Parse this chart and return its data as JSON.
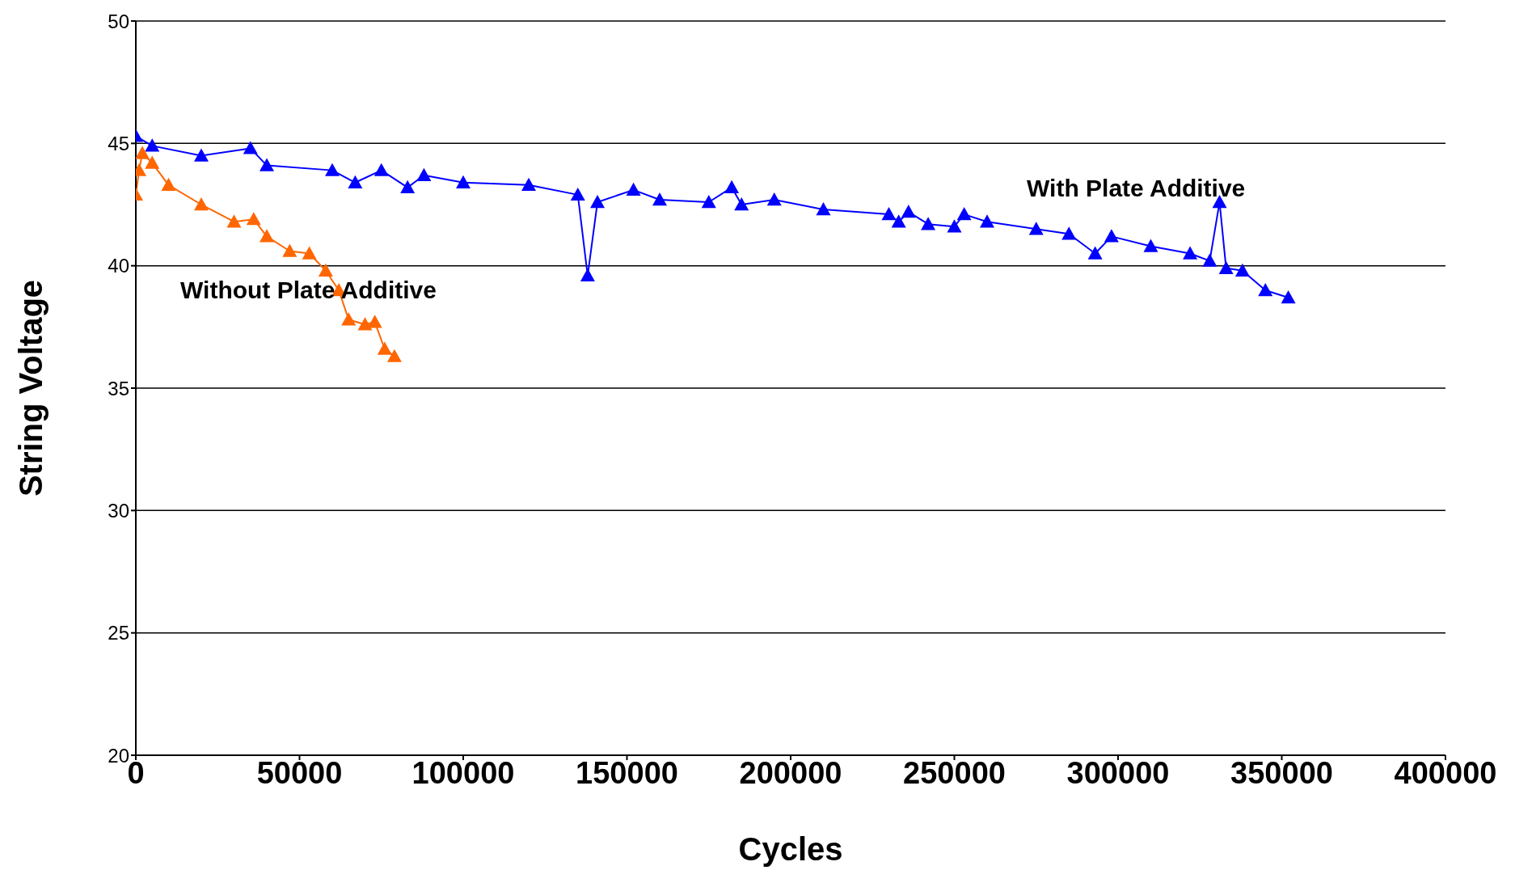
{
  "chart_data": {
    "type": "line",
    "xlabel": "Cycles",
    "ylabel": "String Voltage",
    "xlim": [
      0,
      400000
    ],
    "xticks": [
      0,
      50000,
      100000,
      150000,
      200000,
      250000,
      300000,
      350000,
      400000
    ],
    "ylim": [
      20,
      50
    ],
    "yticks": [
      20,
      25,
      30,
      35,
      40,
      45,
      50
    ],
    "grid": "y",
    "marker": "triangle",
    "line_style": "solid",
    "series": [
      {
        "color": "#0000ff",
        "x": [
          0,
          5000,
          20000,
          35000,
          40000,
          60000,
          67000,
          75000,
          83000,
          88000,
          100000,
          120000,
          135000,
          138000,
          141000,
          152000,
          160000,
          175000,
          182000,
          185000,
          195000,
          210000,
          230000,
          233000,
          236000,
          242000,
          250000,
          253000,
          260000,
          275000,
          285000,
          293000,
          298000,
          310000,
          322000,
          328000,
          331000,
          333000,
          338000,
          345000,
          352000
        ],
        "values": [
          45.3,
          44.9,
          44.5,
          44.8,
          44.1,
          43.9,
          43.4,
          43.9,
          43.2,
          43.7,
          43.4,
          43.3,
          42.9,
          39.6,
          42.6,
          43.1,
          42.7,
          42.6,
          43.2,
          42.5,
          42.7,
          42.3,
          42.1,
          41.8,
          42.2,
          41.7,
          41.6,
          42.1,
          41.8,
          41.5,
          41.3,
          40.5,
          41.2,
          40.8,
          40.5,
          40.2,
          42.6,
          39.9,
          39.8,
          39.0,
          38.7
        ]
      },
      {
        "color": "#ff6600",
        "x": [
          0,
          1000,
          2000,
          5000,
          10000,
          20000,
          30000,
          36000,
          40000,
          47000,
          53000,
          58000,
          62000,
          65000,
          70000,
          73000,
          76000,
          79000
        ],
        "values": [
          42.9,
          43.9,
          44.6,
          44.2,
          43.3,
          42.5,
          41.8,
          41.9,
          41.2,
          40.6,
          40.5,
          39.8,
          39.0,
          37.8,
          37.6,
          37.7,
          36.6,
          36.3
        ]
      }
    ],
    "annotations": [
      "With Plate Additive",
      "Without Plate Additive"
    ]
  }
}
